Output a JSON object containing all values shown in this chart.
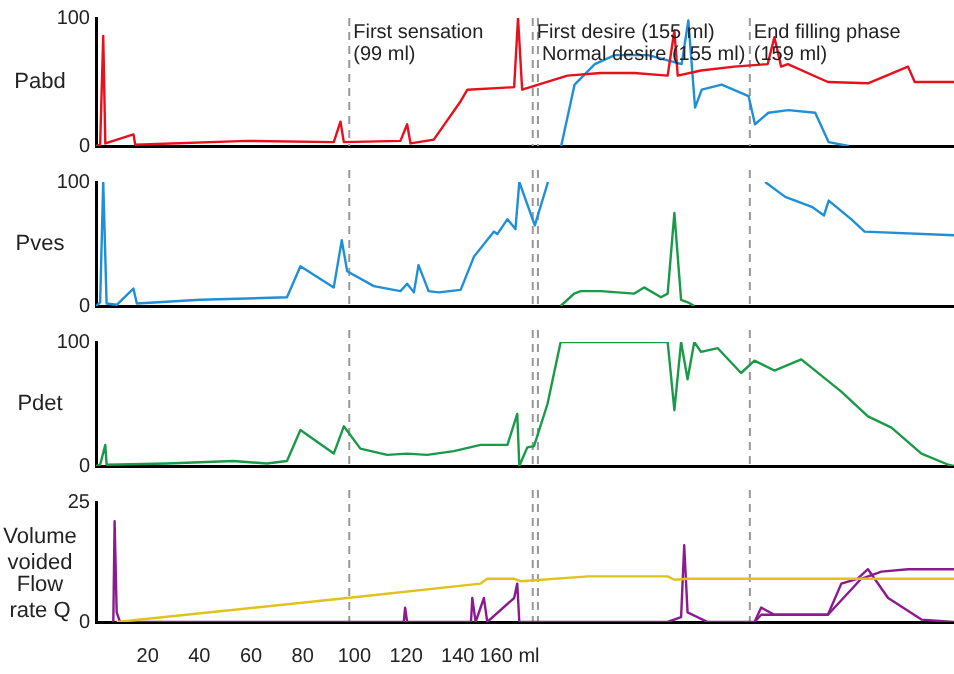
{
  "chart_data": [
    {
      "type": "line",
      "ylabel": "Pabd",
      "xlim": [
        0,
        332
      ],
      "ylim": [
        0,
        100
      ],
      "yticks": [
        0,
        100
      ],
      "tick_labels": "y",
      "line_style": "solid",
      "ref_lines": [
        {
          "axis": "x",
          "value": 98,
          "label": "First sensation (99 ml)",
          "color": "#999999",
          "line_style": "dashed"
        },
        {
          "axis": "x",
          "value": 169,
          "label": "First desire (155 ml)",
          "color": "#999999",
          "line_style": "dashed"
        },
        {
          "axis": "x",
          "value": 171,
          "label": "Normal desire (155 ml)",
          "color": "#999999",
          "line_style": "dashed"
        },
        {
          "axis": "x",
          "value": 253,
          "label": "End filling phase (159 ml)",
          "color": "#999999",
          "line_style": "dashed"
        }
      ],
      "series": [
        {
          "color": "#e8101c",
          "x": [
            0,
            1.6,
            2.8,
            3.6,
            14.5,
            15.2,
            58.4,
            92,
            94.6,
            95.9,
            117.8,
            120.4,
            121.7,
            130.7,
            141.1,
            143.7,
            161.8,
            163.3,
            164.9,
            182.4,
            195.3,
            208.3,
            221.2,
            223.8,
            225.1,
            234.1,
            247,
            259.9,
            262.5,
            265.1,
            267.7,
            283.2,
            298.7,
            314.2,
            316.8,
            332
          ],
          "values": [
            0,
            1,
            86,
            2,
            9,
            1,
            4,
            3,
            19,
            3,
            4,
            17,
            2,
            5,
            35,
            44,
            46,
            100,
            44,
            55,
            57,
            57,
            55,
            90,
            55,
            59,
            62,
            64,
            85,
            62,
            64,
            50,
            49,
            62,
            50,
            50
          ]
        },
        {
          "color": "#1e8fd8",
          "x": [
            180,
            185.2,
            193,
            200.8,
            213.7,
            226.6,
            229.2,
            231.8,
            234.4,
            242.1,
            252.5,
            255.0,
            260.2,
            267.9,
            278.3,
            283.5,
            291.2
          ],
          "values": [
            0,
            48,
            64,
            71,
            71,
            64,
            98,
            30,
            44,
            48,
            39,
            17,
            26,
            28,
            26,
            3,
            0
          ]
        }
      ]
    },
    {
      "type": "line",
      "ylabel": "Pves",
      "xlim": [
        0,
        332
      ],
      "ylim": [
        0,
        100
      ],
      "yticks": [
        0,
        100
      ],
      "tick_labels": "y",
      "line_style": "solid",
      "ref_lines": [
        {
          "axis": "x",
          "value": 98,
          "color": "#999999",
          "line_style": "dashed"
        },
        {
          "axis": "x",
          "value": 169,
          "color": "#999999",
          "line_style": "dashed"
        },
        {
          "axis": "x",
          "value": 171,
          "color": "#999999",
          "line_style": "dashed"
        },
        {
          "axis": "x",
          "value": 253,
          "color": "#999999",
          "line_style": "dashed"
        }
      ],
      "series": [
        {
          "color": "#1e8fd8",
          "x": [
            0,
            1.6,
            2.8,
            4.1,
            8,
            14.5,
            15.8,
            40.3,
            73.9,
            79.1,
            92,
            95.1,
            97.2,
            107.5,
            117.8,
            120.4,
            123,
            124.8,
            128.7,
            132.6,
            141.1,
            146.3,
            154,
            155.3,
            159.2,
            162.3,
            163.8,
            169.8,
            174.9,
            255,
            258.9,
            266.7,
            277,
            281.7,
            283.5,
            292.2,
            297.4,
            332
          ],
          "values": [
            0,
            3,
            100,
            2,
            1,
            14,
            2,
            5,
            7,
            32,
            15,
            53,
            28,
            16,
            12,
            18,
            11,
            33,
            12,
            11,
            13,
            40,
            60,
            58,
            70,
            62,
            100,
            65,
            100,
            null,
            100,
            88,
            80,
            73,
            85,
            70,
            60,
            57
          ]
        },
        {
          "color": "#1a9a48",
          "x": [
            179.8,
            185,
            187.6,
            195.3,
            208.3,
            212.1,
            218.6,
            221.2,
            223.8,
            226.4,
            229,
            231.5
          ],
          "values": [
            0,
            10,
            12,
            12,
            10,
            15,
            7,
            10,
            75,
            5,
            3,
            0
          ]
        }
      ]
    },
    {
      "type": "line",
      "ylabel": "Pdet",
      "xlim": [
        0,
        332
      ],
      "ylim": [
        0,
        100
      ],
      "yticks": [
        0,
        100
      ],
      "tick_labels": "y",
      "line_style": "solid",
      "ref_lines": [
        {
          "axis": "x",
          "value": 98,
          "color": "#999999",
          "line_style": "dashed"
        },
        {
          "axis": "x",
          "value": 169,
          "color": "#999999",
          "line_style": "dashed"
        },
        {
          "axis": "x",
          "value": 171,
          "color": "#999999",
          "line_style": "dashed"
        },
        {
          "axis": "x",
          "value": 253,
          "color": "#999999",
          "line_style": "dashed"
        }
      ],
      "series": [
        {
          "color": "#1a9a48",
          "x": [
            0,
            1.6,
            3.6,
            4.1,
            27.4,
            53.2,
            66.1,
            73.9,
            79.1,
            92,
            95.9,
            102.3,
            112.7,
            120.4,
            128.1,
            138.5,
            148.8,
            159.2,
            163,
            163.8,
            166.9,
            169.5,
            174.7,
            179.8,
            221.2,
            223.8,
            226.4,
            228.9,
            231.5,
            234.1,
            240.6,
            249.6,
            254.8,
            262.5,
            272.9,
            288.4,
            298.7,
            307.8,
            319.4,
            329.8,
            332
          ],
          "values": [
            0,
            1,
            17,
            1,
            2,
            4,
            2,
            4,
            29,
            10,
            32,
            14,
            9,
            10,
            9,
            12,
            17,
            17,
            42,
            0,
            15,
            16,
            50,
            100,
            100,
            45,
            100,
            70,
            100,
            92,
            95,
            75,
            85,
            77,
            86,
            60,
            40,
            31,
            10,
            1,
            0
          ]
        }
      ]
    },
    {
      "type": "line",
      "ylabel": "Volume voided",
      "annotations": [
        "Flow rate Q"
      ],
      "xlim": [
        0,
        332
      ],
      "ylim": [
        0,
        25
      ],
      "yticks": [
        0,
        25
      ],
      "line_style": "solid",
      "xticks": [
        20,
        40,
        60,
        80,
        100,
        120,
        140,
        {
          "value": 160,
          "label": "160 ml"
        }
      ],
      "ref_lines": [
        {
          "axis": "x",
          "value": 98,
          "color": "#999999",
          "line_style": "dashed"
        },
        {
          "axis": "x",
          "value": 169,
          "color": "#999999",
          "line_style": "dashed"
        },
        {
          "axis": "x",
          "value": 171,
          "color": "#999999",
          "line_style": "dashed"
        },
        {
          "axis": "x",
          "value": 253,
          "color": "#999999",
          "line_style": "dashed"
        }
      ],
      "series": [
        {
          "color": "#e0c21a",
          "x": [
            8,
            97.2,
            148.8,
            151.4,
            161.8,
            164.4,
            190.3,
            221.2,
            223.8,
            228.9,
            332
          ],
          "values": [
            0,
            5,
            8,
            9,
            9,
            8.5,
            9.5,
            9.5,
            8.8,
            9,
            9
          ]
        },
        {
          "color": "#8b1a8f",
          "x": [
            6.7,
            7.2,
            8,
            9.3,
            119.1,
            119.6,
            120.4,
            145.1,
            145.6,
            146.9,
            150.1,
            151.4,
            161.8,
            163,
            163.8,
            221.2,
            226.4,
            227.6,
            228.9,
            236.7,
            254.8,
            257.4,
            262.5,
            283.2,
            288.4,
            294.6,
            298.7,
            306.5,
            319.4,
            332
          ],
          "values": [
            0,
            21,
            2,
            0,
            0,
            3,
            0,
            0,
            5,
            0,
            5,
            0,
            5,
            8,
            0,
            0,
            1,
            16,
            2,
            0,
            0,
            3,
            1.5,
            1.5,
            8,
            9,
            11,
            5,
            0.5,
            0
          ]
        },
        {
          "color": "#8b1a8f",
          "x": [
            254.8,
            257.4,
            283.2,
            296.1,
            303.9,
            314.2,
            332
          ],
          "values": [
            0,
            1.5,
            1.5,
            9,
            10.5,
            11,
            11
          ]
        }
      ]
    }
  ]
}
